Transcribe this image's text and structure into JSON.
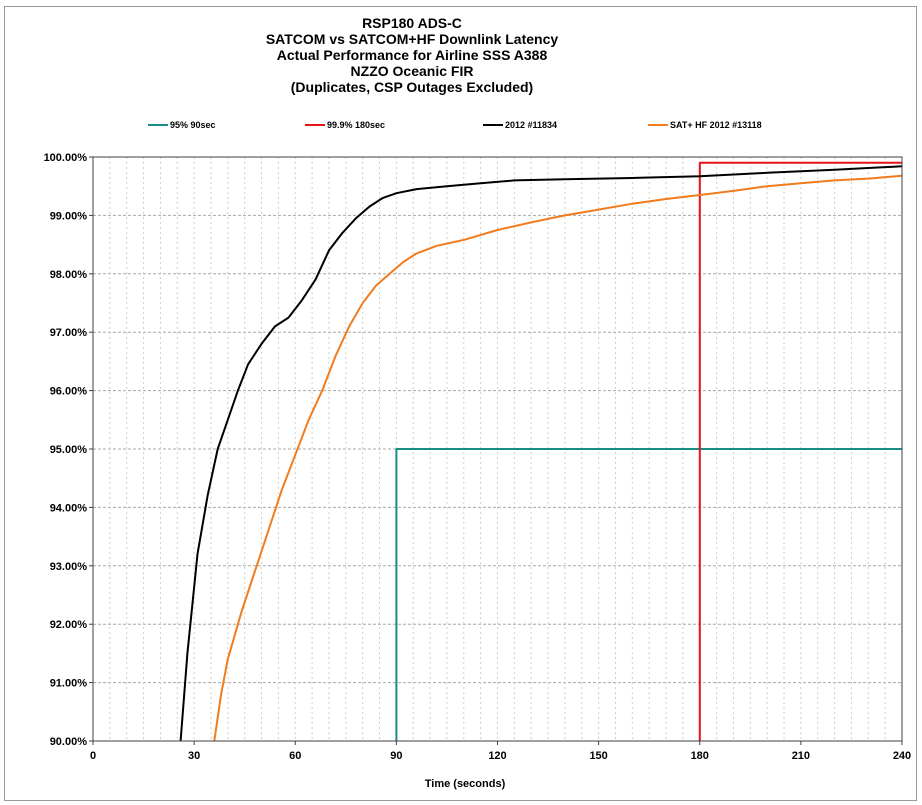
{
  "chart_data": {
    "type": "line",
    "title_lines": [
      "RSP180 ADS-C",
      "SATCOM vs SATCOM+HF  Downlink Latency",
      "Actual Performance  for Airline SSS A388",
      "NZZO Oceanic FIR",
      "(Duplicates,  CSP Outages Excluded)"
    ],
    "xlabel": "Time (seconds)",
    "ylabel": "",
    "xlim": [
      0,
      240
    ],
    "ylim": [
      90,
      100
    ],
    "x_ticks": [
      0,
      30,
      60,
      90,
      120,
      150,
      180,
      210,
      240
    ],
    "y_ticks": [
      "90.00%",
      "91.00%",
      "92.00%",
      "93.00%",
      "94.00%",
      "95.00%",
      "96.00%",
      "97.00%",
      "98.00%",
      "99.00%",
      "100.00%"
    ],
    "grid": true,
    "legend_position": "top",
    "series": [
      {
        "name": "95% 90sec",
        "color": "#1a8c86",
        "points": [
          [
            90,
            90
          ],
          [
            90,
            95
          ],
          [
            240,
            95
          ]
        ]
      },
      {
        "name": "99.9% 180sec",
        "color": "#e8101a",
        "points": [
          [
            180,
            90
          ],
          [
            180,
            99.9
          ],
          [
            240,
            99.9
          ]
        ]
      },
      {
        "name": "2012 #11834",
        "color": "#000000",
        "points": [
          [
            26,
            90
          ],
          [
            28,
            91.5
          ],
          [
            31,
            93.2
          ],
          [
            34,
            94.2
          ],
          [
            37,
            95.0
          ],
          [
            40,
            95.5
          ],
          [
            43,
            96.0
          ],
          [
            46,
            96.45
          ],
          [
            50,
            96.8
          ],
          [
            54,
            97.1
          ],
          [
            58,
            97.25
          ],
          [
            62,
            97.55
          ],
          [
            66,
            97.9
          ],
          [
            70,
            98.4
          ],
          [
            74,
            98.7
          ],
          [
            78,
            98.95
          ],
          [
            82,
            99.15
          ],
          [
            86,
            99.3
          ],
          [
            90,
            99.38
          ],
          [
            96,
            99.45
          ],
          [
            105,
            99.5
          ],
          [
            115,
            99.55
          ],
          [
            125,
            99.6
          ],
          [
            140,
            99.62
          ],
          [
            160,
            99.64
          ],
          [
            180,
            99.67
          ],
          [
            200,
            99.73
          ],
          [
            220,
            99.78
          ],
          [
            240,
            99.84
          ]
        ]
      },
      {
        "name": "SAT+ HF 2012 #13118",
        "color": "#f07c1e",
        "points": [
          [
            36,
            90
          ],
          [
            38,
            90.8
          ],
          [
            40,
            91.4
          ],
          [
            44,
            92.2
          ],
          [
            48,
            92.9
          ],
          [
            52,
            93.6
          ],
          [
            56,
            94.3
          ],
          [
            60,
            94.9
          ],
          [
            64,
            95.5
          ],
          [
            68,
            96.0
          ],
          [
            72,
            96.6
          ],
          [
            76,
            97.1
          ],
          [
            80,
            97.5
          ],
          [
            84,
            97.8
          ],
          [
            88,
            98.0
          ],
          [
            92,
            98.2
          ],
          [
            96,
            98.35
          ],
          [
            102,
            98.48
          ],
          [
            110,
            98.58
          ],
          [
            120,
            98.75
          ],
          [
            130,
            98.88
          ],
          [
            140,
            99.0
          ],
          [
            150,
            99.1
          ],
          [
            160,
            99.2
          ],
          [
            170,
            99.28
          ],
          [
            180,
            99.35
          ],
          [
            190,
            99.42
          ],
          [
            200,
            99.5
          ],
          [
            210,
            99.55
          ],
          [
            220,
            99.6
          ],
          [
            230,
            99.63
          ],
          [
            240,
            99.68
          ]
        ]
      }
    ]
  }
}
